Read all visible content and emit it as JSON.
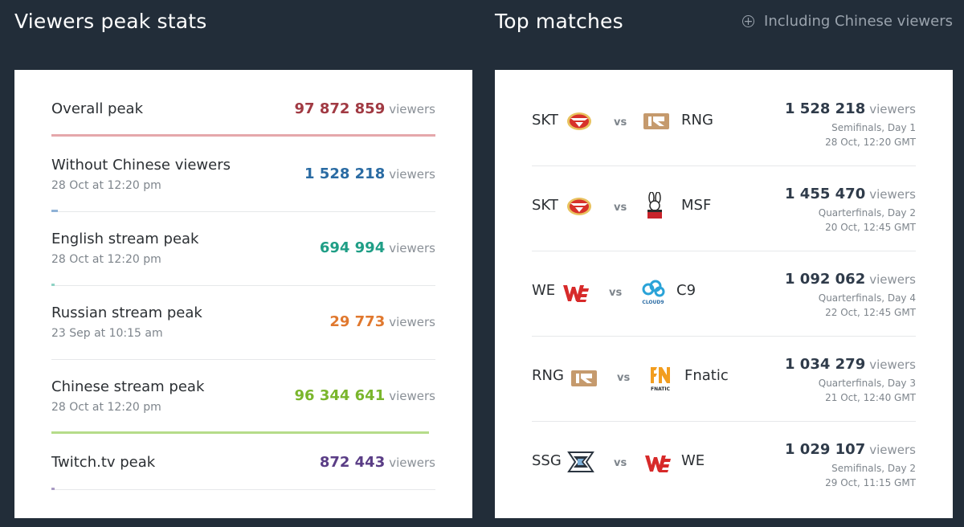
{
  "left": {
    "title": "Viewers peak stats",
    "unit": "viewers",
    "rows": [
      {
        "label": "Overall peak",
        "date": "",
        "value": "97 872 859",
        "fraction": 1.0,
        "color": "#a13a43",
        "bar_color": "#e5a7ab"
      },
      {
        "label": "Without Chinese viewers",
        "date": "28 Oct at 12:20 pm",
        "value": "1 528 218",
        "fraction": 0.016,
        "color": "#2a6ba3",
        "bar_color": "#8fb2d6"
      },
      {
        "label": "English stream peak",
        "date": "28 Oct at 12:20 pm",
        "value": "694 994",
        "fraction": 0.007,
        "color": "#1f9e86",
        "bar_color": "#8fd3c5"
      },
      {
        "label": "Russian stream peak",
        "date": "23 Sep at 10:15 am",
        "value": "29 773",
        "fraction": 0.0003,
        "color": "#e0782e",
        "bar_color": "#f2bd93"
      },
      {
        "label": "Chinese stream peak",
        "date": "28 Oct at 12:20 pm",
        "value": "96 344 641",
        "fraction": 0.984,
        "color": "#7ab62c",
        "bar_color": "#b5dc8a"
      },
      {
        "label": "Twitch.tv peak",
        "date": "",
        "value": "872 443",
        "fraction": 0.009,
        "color": "#5a3d86",
        "bar_color": "#a99bc4"
      }
    ]
  },
  "right": {
    "title": "Top matches",
    "toggle_label": "Including Chinese viewers",
    "vs_label": "vs",
    "unit": "viewers",
    "matches": [
      {
        "team1": "SKT",
        "team1_logo": "skt-logo-icon",
        "team2": "RNG",
        "team2_logo": "rng-logo-icon",
        "viewers": "1 528 218",
        "stage": "Semifinals, Day 1",
        "date": "28 Oct, 12:20 GMT"
      },
      {
        "team1": "SKT",
        "team1_logo": "skt-logo-icon",
        "team2": "MSF",
        "team2_logo": "msf-logo-icon",
        "viewers": "1 455 470",
        "stage": "Quarterfinals, Day 2",
        "date": "20 Oct, 12:45 GMT"
      },
      {
        "team1": "WE",
        "team1_logo": "we-logo-icon",
        "team2": "C9",
        "team2_logo": "cloud9-logo-icon",
        "viewers": "1 092 062",
        "stage": "Quarterfinals, Day 4",
        "date": "22 Oct, 12:45 GMT"
      },
      {
        "team1": "RNG",
        "team1_logo": "rng-logo-icon",
        "team2": "Fnatic",
        "team2_logo": "fnatic-logo-icon",
        "viewers": "1 034 279",
        "stage": "Quarterfinals, Day 3",
        "date": "21 Oct, 12:40 GMT"
      },
      {
        "team1": "SSG",
        "team1_logo": "ssg-logo-icon",
        "team2": "WE",
        "team2_logo": "we-logo-icon",
        "viewers": "1 029 107",
        "stage": "Semifinals, Day 2",
        "date": "29 Oct, 11:15 GMT"
      }
    ],
    "logo_text": {
      "cloud9": "CLOUD9",
      "fnatic": "FNATIC"
    }
  }
}
